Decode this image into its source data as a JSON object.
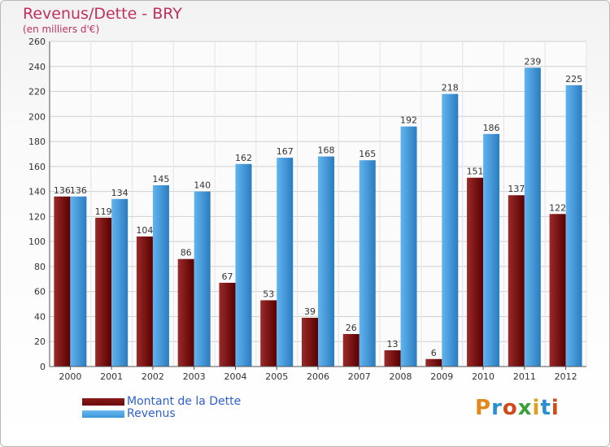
{
  "title": "Revenus/Dette - BRY",
  "subtitle": "(en milliers d'€)",
  "logo_text": "Proxiti",
  "colors": {
    "dette": "#6a0a0a",
    "revenus": "#3a96d8",
    "title": "#c03060",
    "legend": "#3060d0"
  },
  "chart_data": {
    "type": "bar",
    "categories": [
      "2000",
      "2001",
      "2002",
      "2003",
      "2004",
      "2005",
      "2006",
      "2007",
      "2008",
      "2009",
      "2010",
      "2011",
      "2012"
    ],
    "series": [
      {
        "name": "Montant de la Dette",
        "values": [
          136,
          119,
          104,
          86,
          67,
          53,
          39,
          26,
          13,
          6,
          151,
          137,
          122
        ]
      },
      {
        "name": "Revenus",
        "values": [
          136,
          134,
          145,
          140,
          162,
          167,
          168,
          165,
          192,
          218,
          186,
          239,
          225
        ]
      }
    ],
    "ylim": [
      0,
      260
    ],
    "yticks": [
      0,
      20,
      40,
      60,
      80,
      100,
      120,
      140,
      160,
      180,
      200,
      220,
      240,
      260
    ],
    "grid": true,
    "legend_position": "bottom-left"
  }
}
